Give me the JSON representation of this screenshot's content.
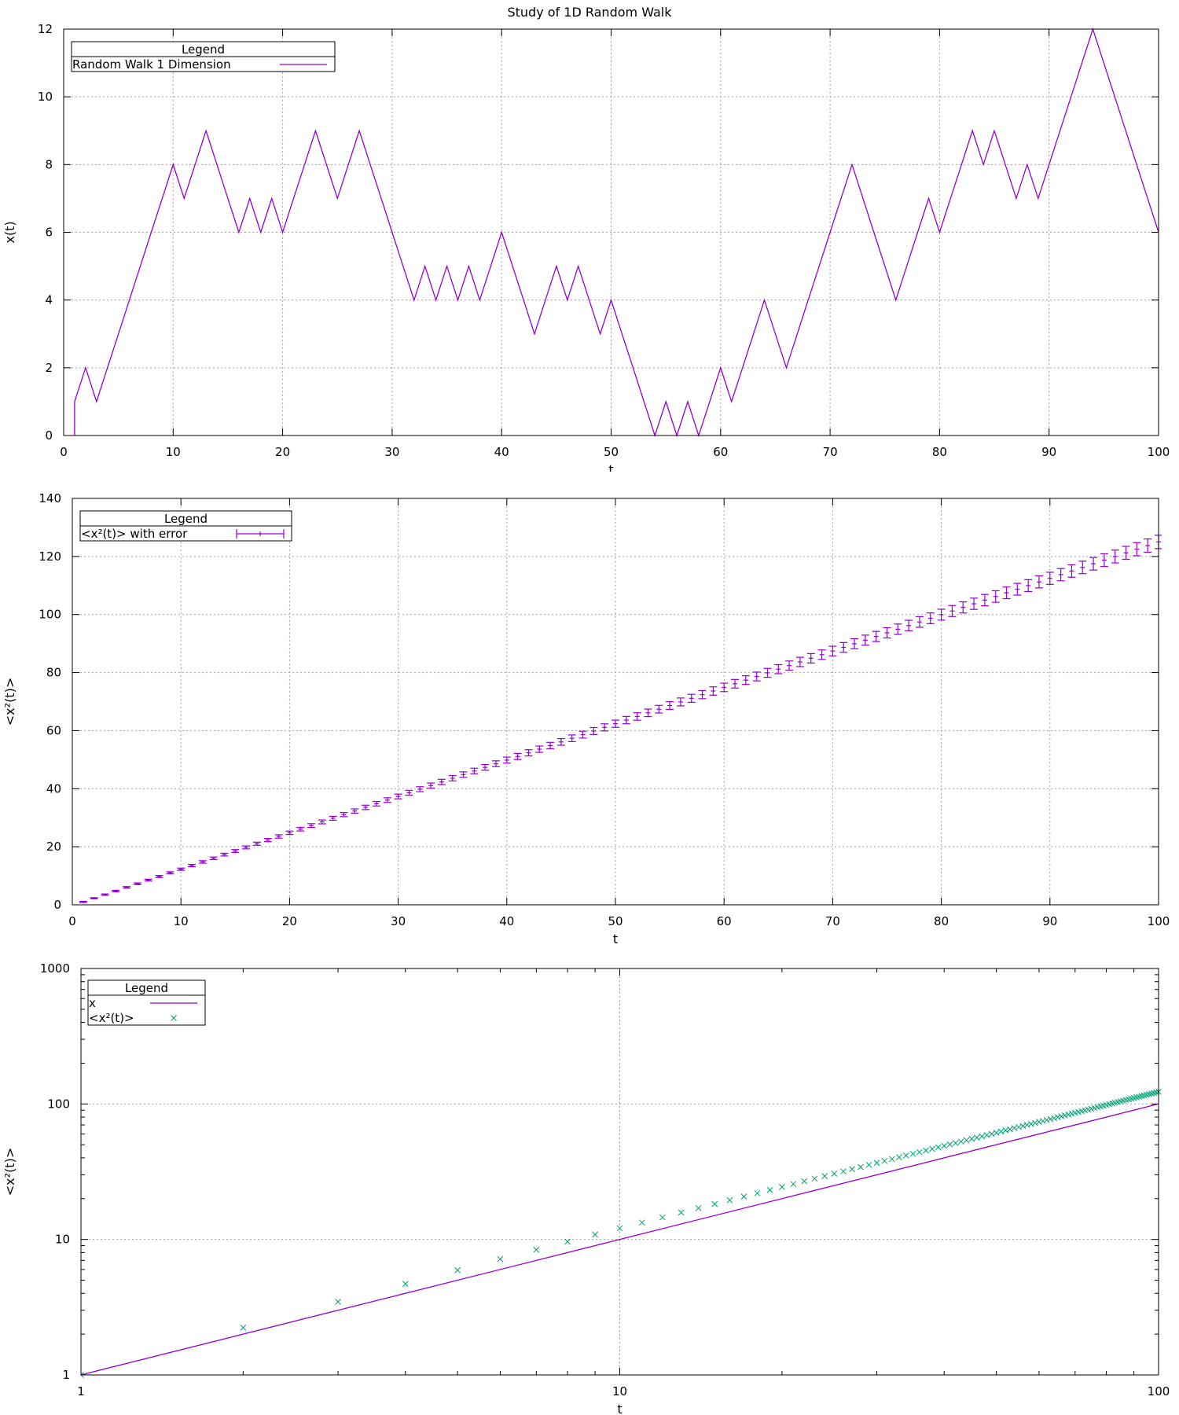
{
  "figure_title": "Study of 1D Random Walk",
  "chart_data": [
    {
      "type": "line",
      "title": "",
      "xlabel": "t",
      "ylabel": "x(t)",
      "xlim": [
        0,
        100
      ],
      "ylim": [
        0,
        12
      ],
      "xscale": "linear",
      "yscale": "linear",
      "xticks": [
        0,
        10,
        20,
        30,
        40,
        50,
        60,
        70,
        80,
        90,
        100
      ],
      "yticks": [
        0,
        2,
        4,
        6,
        8,
        10,
        12
      ],
      "grid": true,
      "legend": {
        "title": "Legend",
        "position": "top-left"
      },
      "series": [
        {
          "name": "Random Walk 1 Dimension",
          "color": "#9400d3",
          "style": "line",
          "x": [
            1,
            1,
            2,
            3,
            4,
            5,
            6,
            7,
            8,
            9,
            10,
            11,
            12,
            13,
            14,
            15,
            16,
            17,
            18,
            19,
            20,
            21,
            22,
            23,
            24,
            25,
            26,
            27,
            28,
            29,
            30,
            31,
            32,
            33,
            34,
            35,
            36,
            37,
            38,
            39,
            40,
            41,
            42,
            43,
            44,
            45,
            46,
            47,
            48,
            49,
            50,
            51,
            52,
            53,
            54,
            55,
            56,
            57,
            58,
            59,
            60,
            61,
            62,
            63,
            64,
            65,
            66,
            67,
            68,
            69,
            70,
            71,
            72,
            73,
            74,
            75,
            76,
            77,
            78,
            79,
            80,
            81,
            82,
            83,
            84,
            85,
            86,
            87,
            88,
            89,
            90,
            91,
            92,
            93,
            94,
            95,
            96,
            97,
            98,
            99,
            100
          ],
          "y": [
            0,
            1,
            2,
            1,
            2,
            3,
            4,
            5,
            6,
            7,
            8,
            7,
            8,
            9,
            8,
            7,
            6,
            7,
            6,
            7,
            6,
            7,
            8,
            9,
            8,
            7,
            8,
            9,
            8,
            7,
            6,
            5,
            4,
            5,
            4,
            5,
            4,
            5,
            4,
            5,
            6,
            5,
            4,
            3,
            4,
            5,
            4,
            5,
            4,
            3,
            4,
            3,
            2,
            1,
            0,
            1,
            0,
            1,
            0,
            1,
            2,
            1,
            2,
            3,
            4,
            3,
            2,
            3,
            4,
            5,
            6,
            7,
            8,
            7,
            6,
            5,
            4,
            5,
            6,
            7,
            6,
            7,
            8,
            9,
            8,
            9,
            8,
            7,
            8,
            7,
            8,
            9,
            10,
            11,
            12,
            11,
            10,
            9,
            8,
            7,
            6
          ]
        }
      ]
    },
    {
      "type": "errorbar",
      "title": "",
      "xlabel": "t",
      "ylabel": "<x²(t)>",
      "xlim": [
        0,
        100
      ],
      "ylim": [
        0,
        140
      ],
      "xscale": "linear",
      "yscale": "linear",
      "xticks": [
        0,
        10,
        20,
        30,
        40,
        50,
        60,
        70,
        80,
        90,
        100
      ],
      "yticks": [
        0,
        20,
        40,
        60,
        80,
        100,
        120,
        140
      ],
      "grid": true,
      "legend": {
        "title": "Legend",
        "position": "top-left"
      },
      "series": [
        {
          "name": "<x²(t)> with error",
          "color": "#9400d3",
          "style": "errorbar",
          "x_range": [
            1,
            100
          ],
          "y_start": 1.0,
          "y_end": 125.0,
          "error_start": 0.2,
          "error_end": 2.3
        }
      ]
    },
    {
      "type": "line",
      "title": "",
      "xlabel": "t",
      "ylabel": "<x²(t)>",
      "xlim": [
        1,
        100
      ],
      "ylim": [
        1,
        1000
      ],
      "xscale": "log",
      "yscale": "log",
      "xticks": [
        1,
        10,
        100
      ],
      "yticks": [
        1,
        10,
        100,
        1000
      ],
      "grid": true,
      "legend": {
        "title": "Legend",
        "position": "top-left"
      },
      "series": [
        {
          "name": "x",
          "color": "#9400d3",
          "style": "line",
          "x": [
            1,
            100
          ],
          "y": [
            1,
            100
          ]
        },
        {
          "name": "<x²(t)>",
          "color": "#009e73",
          "style": "points",
          "marker": "x",
          "x_range": [
            1,
            100
          ],
          "y_start": 1.0,
          "y_end": 123.0
        }
      ]
    }
  ]
}
